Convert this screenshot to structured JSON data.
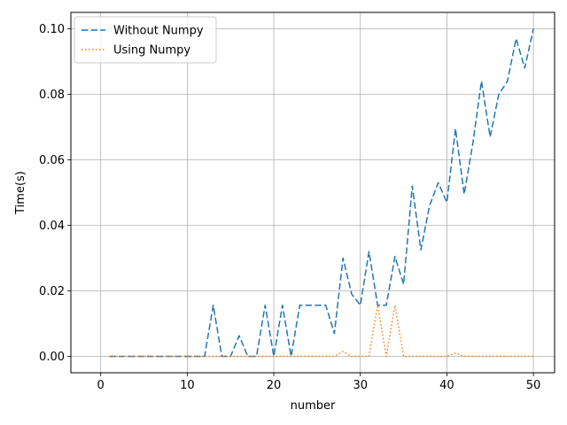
{
  "chart_data": {
    "type": "line",
    "title": "",
    "xlabel": "number",
    "ylabel": "Time(s)",
    "xlim": [
      -3.45,
      52.45
    ],
    "ylim": [
      -0.005,
      0.105
    ],
    "xticks": [
      0,
      10,
      20,
      30,
      40,
      50
    ],
    "xtick_labels": [
      "0",
      "10",
      "20",
      "30",
      "40",
      "50"
    ],
    "yticks": [
      0.0,
      0.02,
      0.04,
      0.06,
      0.08,
      0.1
    ],
    "ytick_labels": [
      "0.00",
      "0.02",
      "0.04",
      "0.06",
      "0.08",
      "0.10"
    ],
    "grid": true,
    "legend_position": "upper-left",
    "x": [
      1,
      2,
      3,
      4,
      5,
      6,
      7,
      8,
      9,
      10,
      11,
      12,
      13,
      14,
      15,
      16,
      17,
      18,
      19,
      20,
      21,
      22,
      23,
      24,
      25,
      26,
      27,
      28,
      29,
      30,
      31,
      32,
      33,
      34,
      35,
      36,
      37,
      38,
      39,
      40,
      41,
      42,
      43,
      44,
      45,
      46,
      47,
      48,
      49,
      50
    ],
    "series": [
      {
        "name": "Without Numpy",
        "color": "#1f77b4",
        "style": "dashed",
        "values": [
          0,
          0,
          0,
          0,
          0,
          0,
          0,
          0,
          0,
          0,
          0,
          0,
          0.0156,
          0,
          0,
          0.0063,
          0,
          0,
          0.0156,
          0,
          0.0156,
          0,
          0.0156,
          0.0156,
          0.0156,
          0.0156,
          0.007,
          0.03,
          0.019,
          0.0156,
          0.032,
          0.0156,
          0.0156,
          0.0305,
          0.022,
          0.052,
          0.0325,
          0.046,
          0.053,
          0.047,
          0.0695,
          0.0495,
          0.065,
          0.084,
          0.067,
          0.08,
          0.084,
          0.097,
          0.088,
          0.1
        ]
      },
      {
        "name": "Using Numpy",
        "color": "#ff7f0e",
        "style": "dotted",
        "values": [
          0,
          0,
          0,
          0,
          0,
          0,
          0,
          0,
          0,
          0,
          0,
          0,
          0,
          0,
          0,
          0,
          0,
          0,
          0,
          0,
          0,
          0,
          0,
          0,
          0,
          0,
          0,
          0.0015,
          0,
          0,
          0,
          0.0156,
          0,
          0.0156,
          0,
          0,
          0,
          0,
          0,
          0,
          0.001,
          0,
          0,
          0,
          0,
          0,
          0,
          0,
          0,
          0
        ]
      }
    ]
  }
}
